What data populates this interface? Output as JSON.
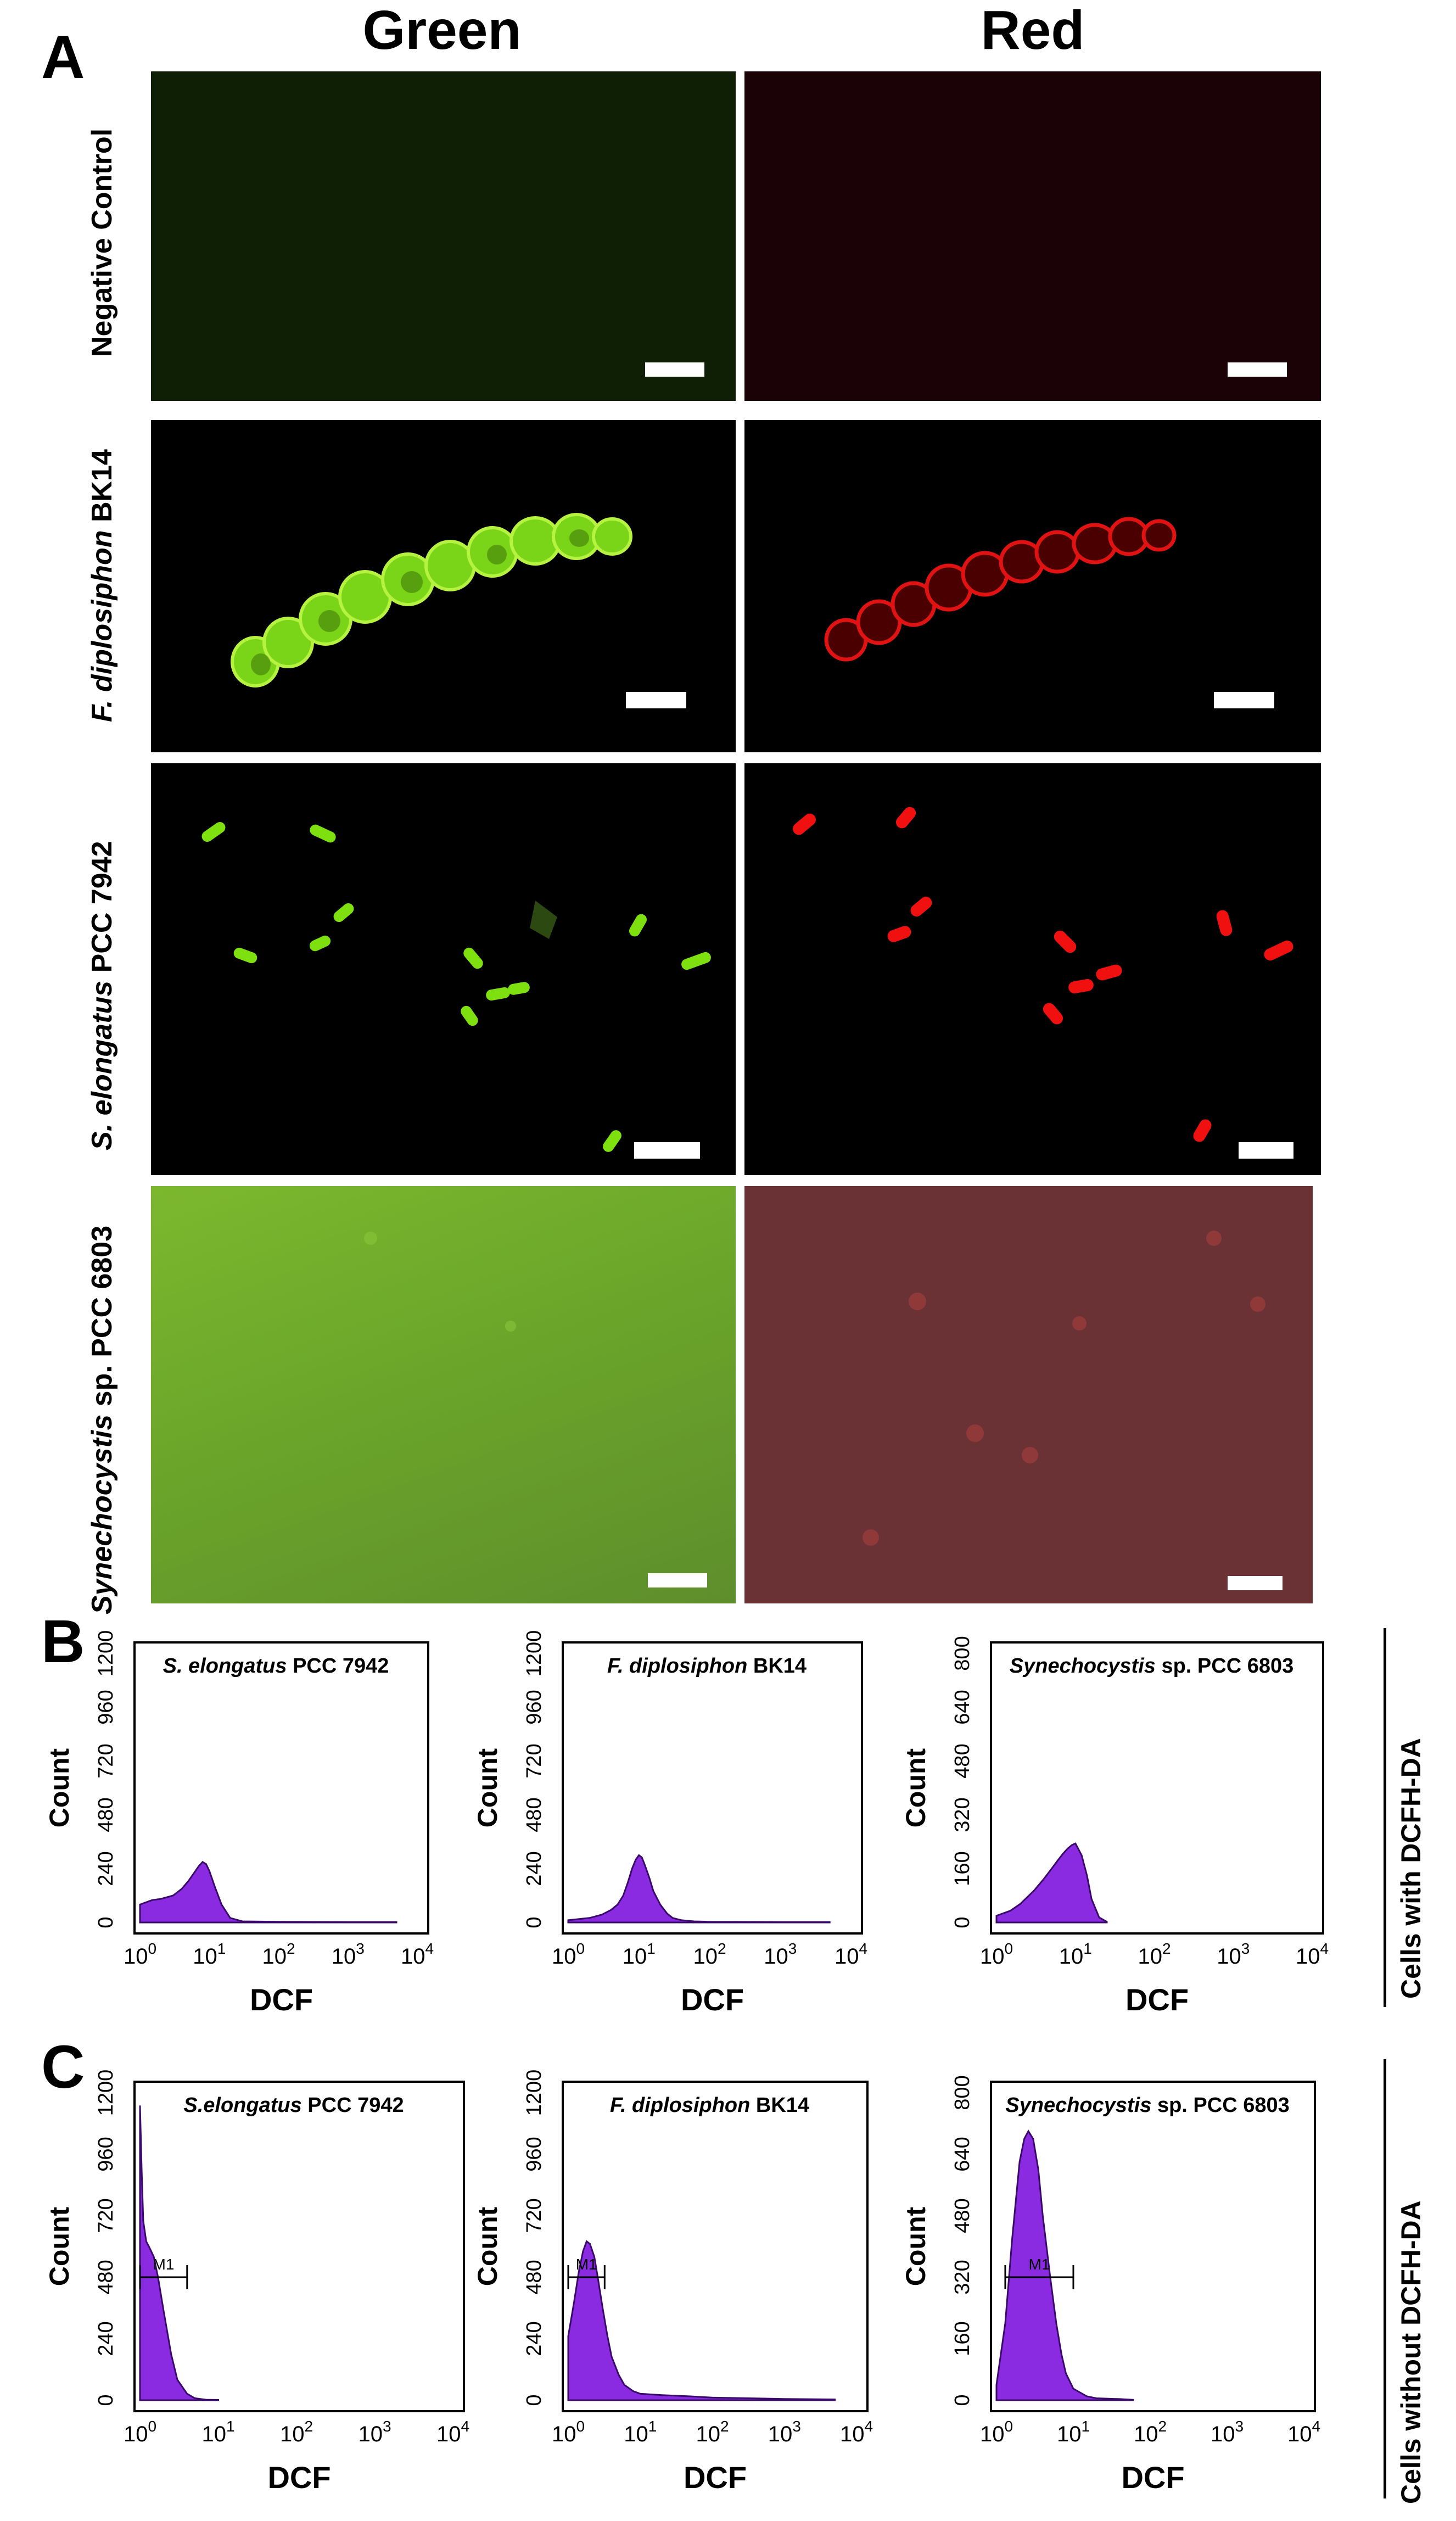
{
  "panel_A": {
    "letter": "A",
    "columns": [
      "Green",
      "Red"
    ],
    "rows": [
      {
        "italic": "",
        "plain": "Negative Control"
      },
      {
        "italic": "F. diplosiphon",
        "plain": " BK14"
      },
      {
        "italic": "S. elongatus",
        "plain": " PCC 7942"
      },
      {
        "italic": "Synechocystis",
        "plain": " sp. PCC 6803"
      }
    ]
  },
  "panel_B": {
    "letter": "B",
    "side_label": "Cells with DCFH-DA"
  },
  "panel_C": {
    "letter": "C",
    "side_label": "Cells without DCFH-DA"
  },
  "colors": {
    "histogram_fill": "#8a2be2",
    "histogram_stroke": "#3a0a6a",
    "green_cell": "#7fe010",
    "red_cell": "#e01010"
  },
  "chart_data": [
    {
      "type": "area",
      "title_italic": "S. elongatus",
      "title_plain": " PCC 7942",
      "xlabel": "DCF",
      "ylabel": "Count",
      "x_scale": "log",
      "xlim": [
        1,
        10000
      ],
      "x_ticks": [
        "10",
        "10",
        "10",
        "10",
        "10"
      ],
      "x_exp": [
        "0",
        "1",
        "2",
        "3",
        "4"
      ],
      "ylim": [
        0,
        1200
      ],
      "y_ticks": [
        "0",
        "240",
        "480",
        "720",
        "960",
        "1200"
      ],
      "x": [
        1,
        1.5,
        2,
        3,
        4,
        5,
        6,
        7,
        8,
        9,
        10,
        12,
        15,
        20,
        30,
        100,
        1000,
        5000
      ],
      "y": [
        80,
        100,
        105,
        120,
        150,
        185,
        220,
        250,
        270,
        260,
        230,
        160,
        80,
        20,
        5,
        3,
        2,
        2
      ],
      "marker": ""
    },
    {
      "type": "area",
      "title_italic": "F. diplosiphon",
      "title_plain": " BK14",
      "xlabel": "DCF",
      "ylabel": "Count",
      "x_scale": "log",
      "xlim": [
        1,
        10000
      ],
      "x_ticks": [
        "10",
        "10",
        "10",
        "10",
        "10"
      ],
      "x_exp": [
        "0",
        "1",
        "2",
        "3",
        "4"
      ],
      "ylim": [
        0,
        1200
      ],
      "y_ticks": [
        "0",
        "240",
        "480",
        "720",
        "960",
        "1200"
      ],
      "x": [
        1,
        2,
        3,
        4,
        5,
        6,
        7,
        8,
        9,
        10,
        11,
        12,
        14,
        16,
        20,
        25,
        30,
        40,
        60,
        100,
        1000,
        5000
      ],
      "y": [
        10,
        20,
        35,
        55,
        80,
        120,
        180,
        240,
        280,
        300,
        290,
        260,
        200,
        140,
        80,
        40,
        20,
        10,
        5,
        3,
        2,
        2
      ],
      "marker": ""
    },
    {
      "type": "area",
      "title_italic": "Synechocystis",
      "title_plain": " sp. PCC 6803",
      "xlabel": "DCF",
      "ylabel": "Count",
      "x_scale": "log",
      "xlim": [
        1,
        10000
      ],
      "x_ticks": [
        "10",
        "10",
        "10",
        "10",
        "10"
      ],
      "x_exp": [
        "0",
        "1",
        "2",
        "3",
        "4"
      ],
      "ylim": [
        0,
        800
      ],
      "y_ticks": [
        "0",
        "160",
        "320",
        "480",
        "640",
        "800"
      ],
      "x": [
        1,
        1.5,
        2,
        3,
        4,
        5,
        6,
        7,
        8,
        9,
        10,
        12,
        14,
        16,
        20,
        25
      ],
      "y": [
        20,
        35,
        55,
        95,
        130,
        160,
        185,
        205,
        220,
        230,
        235,
        200,
        140,
        70,
        15,
        2
      ],
      "marker": ""
    },
    {
      "type": "area",
      "title_italic": "S.elongatus",
      "title_plain": " PCC 7942",
      "xlabel": "DCF",
      "ylabel": "Count",
      "x_scale": "log",
      "xlim": [
        1,
        10000
      ],
      "x_ticks": [
        "10",
        "10",
        "10",
        "10",
        "10"
      ],
      "x_exp": [
        "0",
        "1",
        "2",
        "3",
        "4"
      ],
      "ylim": [
        0,
        1200
      ],
      "y_ticks": [
        "0",
        "240",
        "480",
        "720",
        "960",
        "1200"
      ],
      "x": [
        1,
        1.05,
        1.1,
        1.2,
        1.3,
        1.5,
        1.7,
        2,
        2.5,
        3,
        4,
        5,
        7,
        10
      ],
      "y": [
        1150,
        900,
        700,
        620,
        600,
        560,
        480,
        350,
        180,
        80,
        25,
        8,
        2,
        1
      ],
      "marker": "M1",
      "marker_range": [
        1,
        4
      ]
    },
    {
      "type": "area",
      "title_italic": "F. diplosiphon",
      "title_plain": " BK14",
      "xlabel": "DCF",
      "ylabel": "Count",
      "x_scale": "log",
      "xlim": [
        1,
        10000
      ],
      "x_ticks": [
        "10",
        "10",
        "10",
        "10",
        "10"
      ],
      "x_exp": [
        "0",
        "1",
        "2",
        "3",
        "4"
      ],
      "ylim": [
        0,
        1200
      ],
      "y_ticks": [
        "0",
        "240",
        "480",
        "720",
        "960",
        "1200"
      ],
      "x": [
        1,
        1.2,
        1.4,
        1.6,
        1.8,
        2,
        2.3,
        2.6,
        3,
        3.5,
        4,
        5,
        6,
        8,
        10,
        20,
        50,
        100,
        1000,
        5000
      ],
      "y": [
        250,
        380,
        500,
        580,
        620,
        610,
        560,
        470,
        360,
        250,
        170,
        100,
        60,
        35,
        25,
        20,
        15,
        10,
        5,
        3
      ],
      "marker": "M1",
      "marker_range": [
        1,
        3.2
      ]
    },
    {
      "type": "area",
      "title_italic": "Synechocystis",
      "title_plain": " sp. PCC 6803",
      "xlabel": "DCF",
      "ylabel": "Count",
      "x_scale": "log",
      "xlim": [
        1,
        10000
      ],
      "x_ticks": [
        "10",
        "10",
        "10",
        "10",
        "10"
      ],
      "x_exp": [
        "0",
        "1",
        "2",
        "3",
        "4"
      ],
      "ylim": [
        0,
        800
      ],
      "y_ticks": [
        "0",
        "160",
        "320",
        "480",
        "640",
        "800"
      ],
      "x": [
        1,
        1.3,
        1.6,
        2,
        2.3,
        2.6,
        3,
        3.5,
        4,
        5,
        6,
        7,
        8,
        10,
        15,
        20,
        40,
        60
      ],
      "y": [
        40,
        200,
        420,
        620,
        680,
        700,
        680,
        600,
        480,
        320,
        200,
        120,
        70,
        30,
        10,
        5,
        3,
        1
      ],
      "marker": "M1",
      "marker_range": [
        1.3,
        10
      ]
    }
  ]
}
